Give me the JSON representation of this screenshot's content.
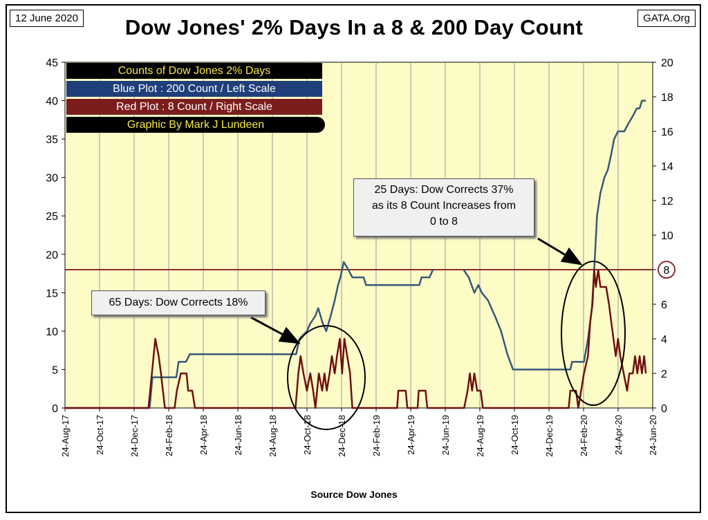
{
  "header": {
    "date": "12 June 2020",
    "site": "GATA.Org",
    "title": "Dow Jones' 2% Days In a 8 & 200 Day Count"
  },
  "legend": [
    "Counts of Dow Jones 2% Days",
    "Blue Plot : 200 Count / Left Scale",
    "Red Plot : 8 Count / Right Scale",
    "Graphic By Mark J Lundeen"
  ],
  "annotations": {
    "callout_1": "65 Days: Dow Corrects 18%",
    "callout_2": [
      "25 Days: Dow Corrects 37%",
      "as its 8 Count Increases from",
      "0 to 8"
    ],
    "reference_label": "8"
  },
  "colors": {
    "plot_background": "#fdfbc6",
    "blue_series": "#34587a",
    "red_series": "#6e0f0f",
    "reference_line": "#8b2e2e",
    "gridline": "#9a9a9a"
  },
  "chart_data": {
    "type": "line",
    "xlabel": "Source Dow Jones",
    "x_tick_labels": [
      "24-Aug-17",
      "24-Oct-17",
      "24-Dec-17",
      "24-Feb-18",
      "24-Apr-18",
      "24-Jun-18",
      "24-Aug-18",
      "24-Oct-18",
      "24-Dec-18",
      "24-Feb-19",
      "24-Apr-19",
      "24-Jun-19",
      "24-Aug-19",
      "24-Oct-19",
      "24-Dec-19",
      "24-Feb-20",
      "24-Apr-20",
      "24-Jun-20"
    ],
    "xlim": [
      "2017-08-24",
      "2020-06-24"
    ],
    "y_left": {
      "range": [
        0,
        45
      ],
      "ticks": [
        0,
        5,
        10,
        15,
        20,
        25,
        30,
        35,
        40,
        45
      ]
    },
    "y_right": {
      "range": [
        0,
        20
      ],
      "ticks": [
        0,
        2,
        4,
        6,
        8,
        10,
        12,
        14,
        16,
        18,
        20
      ]
    },
    "grid": true,
    "reference_line": {
      "axis": "right",
      "value": 8
    },
    "series": [
      {
        "axis": "left",
        "points": [
          [
            "2017-08-24",
            0
          ],
          [
            "2018-01-20",
            0
          ],
          [
            "2018-01-25",
            4
          ],
          [
            "2018-03-08",
            4
          ],
          [
            "2018-03-12",
            6
          ],
          [
            "2018-03-25",
            6
          ],
          [
            "2018-04-01",
            7
          ],
          [
            "2018-08-10",
            7
          ],
          [
            "2018-10-05",
            7
          ],
          [
            "2018-10-11",
            9
          ],
          [
            "2018-10-24",
            10
          ],
          [
            "2018-10-30",
            11
          ],
          [
            "2018-11-08",
            12
          ],
          [
            "2018-11-13",
            13
          ],
          [
            "2018-11-21",
            11
          ],
          [
            "2018-11-27",
            10
          ],
          [
            "2018-12-05",
            12
          ],
          [
            "2018-12-12",
            14
          ],
          [
            "2018-12-18",
            16
          ],
          [
            "2018-12-22",
            17
          ],
          [
            "2018-12-28",
            19
          ],
          [
            "2019-01-05",
            18
          ],
          [
            "2019-01-12",
            17
          ],
          [
            "2019-02-01",
            17
          ],
          [
            "2019-02-05",
            16
          ],
          [
            "2019-05-10",
            16
          ],
          [
            "2019-05-14",
            17
          ],
          [
            "2019-05-28",
            17
          ],
          [
            "2019-06-03",
            18
          ],
          [
            "2019-06-05",
            null
          ],
          [
            "2019-07-25",
            null
          ],
          [
            "2019-07-27",
            18
          ],
          [
            "2019-08-05",
            17
          ],
          [
            "2019-08-10",
            16
          ],
          [
            "2019-08-15",
            15
          ],
          [
            "2019-08-22",
            16
          ],
          [
            "2019-08-28",
            15
          ],
          [
            "2019-09-08",
            14
          ],
          [
            "2019-09-20",
            12
          ],
          [
            "2019-10-01",
            10
          ],
          [
            "2019-10-12",
            7
          ],
          [
            "2019-10-22",
            5
          ],
          [
            "2020-01-31",
            5
          ],
          [
            "2020-02-03",
            6
          ],
          [
            "2020-02-24",
            6
          ],
          [
            "2020-03-02",
            9
          ],
          [
            "2020-03-09",
            13
          ],
          [
            "2020-03-13",
            18
          ],
          [
            "2020-03-18",
            25
          ],
          [
            "2020-03-24",
            28
          ],
          [
            "2020-03-31",
            30
          ],
          [
            "2020-04-06",
            31
          ],
          [
            "2020-04-12",
            33
          ],
          [
            "2020-04-17",
            35
          ],
          [
            "2020-04-24",
            36
          ],
          [
            "2020-05-05",
            36
          ],
          [
            "2020-05-12",
            37
          ],
          [
            "2020-05-20",
            38
          ],
          [
            "2020-05-27",
            39
          ],
          [
            "2020-06-01",
            39
          ],
          [
            "2020-06-05",
            40
          ],
          [
            "2020-06-12",
            40
          ]
        ]
      },
      {
        "axis": "right",
        "points": [
          [
            "2017-08-24",
            0
          ],
          [
            "2018-01-18",
            0
          ],
          [
            "2018-01-24",
            2
          ],
          [
            "2018-01-30",
            4
          ],
          [
            "2018-02-05",
            3
          ],
          [
            "2018-02-09",
            2
          ],
          [
            "2018-02-16",
            0
          ],
          [
            "2018-03-05",
            0
          ],
          [
            "2018-03-09",
            1
          ],
          [
            "2018-03-16",
            2
          ],
          [
            "2018-03-26",
            2
          ],
          [
            "2018-03-29",
            1
          ],
          [
            "2018-04-05",
            1
          ],
          [
            "2018-04-10",
            0
          ],
          [
            "2018-10-04",
            0
          ],
          [
            "2018-10-09",
            2
          ],
          [
            "2018-10-13",
            3
          ],
          [
            "2018-10-18",
            2
          ],
          [
            "2018-10-24",
            1
          ],
          [
            "2018-10-30",
            2
          ],
          [
            "2018-11-04",
            1
          ],
          [
            "2018-11-08",
            0
          ],
          [
            "2018-11-14",
            2
          ],
          [
            "2018-11-20",
            1
          ],
          [
            "2018-11-24",
            2
          ],
          [
            "2018-11-28",
            1
          ],
          [
            "2018-12-03",
            2
          ],
          [
            "2018-12-07",
            3
          ],
          [
            "2018-12-12",
            2
          ],
          [
            "2018-12-16",
            3
          ],
          [
            "2018-12-21",
            4
          ],
          [
            "2018-12-25",
            2
          ],
          [
            "2018-12-29",
            4
          ],
          [
            "2019-01-03",
            3
          ],
          [
            "2019-01-08",
            2
          ],
          [
            "2019-01-12",
            0
          ],
          [
            "2019-04-01",
            0
          ],
          [
            "2019-04-03",
            1
          ],
          [
            "2019-04-16",
            1
          ],
          [
            "2019-04-19",
            0
          ],
          [
            "2019-05-07",
            0
          ],
          [
            "2019-05-09",
            1
          ],
          [
            "2019-05-21",
            1
          ],
          [
            "2019-05-24",
            0
          ],
          [
            "2019-07-28",
            0
          ],
          [
            "2019-08-03",
            1
          ],
          [
            "2019-08-07",
            2
          ],
          [
            "2019-08-11",
            1
          ],
          [
            "2019-08-15",
            2
          ],
          [
            "2019-08-20",
            1
          ],
          [
            "2019-08-26",
            1
          ],
          [
            "2019-08-30",
            0
          ],
          [
            "2020-01-28",
            0
          ],
          [
            "2020-01-31",
            1
          ],
          [
            "2020-02-10",
            1
          ],
          [
            "2020-02-14",
            0
          ],
          [
            "2020-02-24",
            2
          ],
          [
            "2020-03-02",
            3
          ],
          [
            "2020-03-06",
            5
          ],
          [
            "2020-03-10",
            6
          ],
          [
            "2020-03-13",
            8
          ],
          [
            "2020-03-16",
            7
          ],
          [
            "2020-03-20",
            8
          ],
          [
            "2020-03-24",
            7
          ],
          [
            "2020-04-03",
            7
          ],
          [
            "2020-04-08",
            6
          ],
          [
            "2020-04-12",
            5
          ],
          [
            "2020-04-16",
            4
          ],
          [
            "2020-04-20",
            3
          ],
          [
            "2020-04-24",
            4
          ],
          [
            "2020-04-28",
            3
          ],
          [
            "2020-05-04",
            2
          ],
          [
            "2020-05-10",
            1
          ],
          [
            "2020-05-14",
            2
          ],
          [
            "2020-05-20",
            2
          ],
          [
            "2020-05-24",
            3
          ],
          [
            "2020-05-28",
            2
          ],
          [
            "2020-06-01",
            3
          ],
          [
            "2020-06-05",
            2
          ],
          [
            "2020-06-09",
            3
          ],
          [
            "2020-06-12",
            2
          ]
        ]
      }
    ]
  }
}
